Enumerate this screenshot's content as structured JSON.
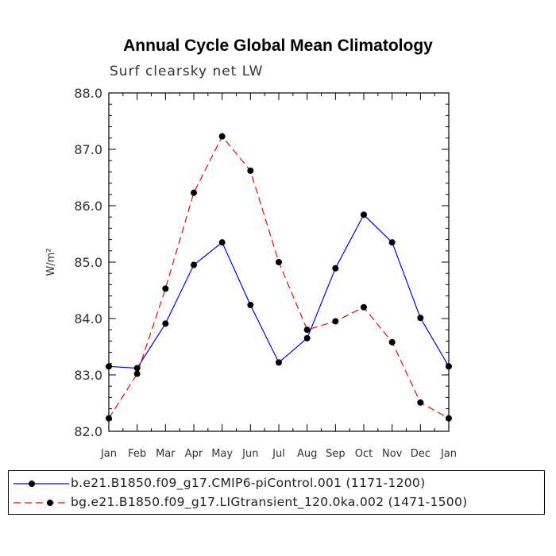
{
  "chart_data": {
    "type": "line",
    "title": "Annual Cycle Global Mean Climatology",
    "subtitle": "Surf clearsky net LW",
    "ylabel": "W/m²",
    "xlabel": "",
    "categories": [
      "Jan",
      "Feb",
      "Mar",
      "Apr",
      "May",
      "Jun",
      "Jul",
      "Aug",
      "Sep",
      "Oct",
      "Nov",
      "Dec",
      "Jan"
    ],
    "ylim": [
      82.0,
      88.0
    ],
    "yticks": [
      "82.0",
      "83.0",
      "84.0",
      "85.0",
      "86.0",
      "87.0",
      "88.0"
    ],
    "grid": false,
    "series": [
      {
        "name": "b.e21.B1850.f09_g17.CMIP6-piControl.001 (1171-1200)",
        "color": "#0000ff",
        "dash": "solid",
        "values": [
          83.15,
          83.12,
          83.91,
          84.95,
          85.35,
          84.24,
          83.22,
          83.65,
          84.89,
          85.84,
          85.35,
          84.01,
          83.15
        ]
      },
      {
        "name": "bg.e21.B1850.f09_g17.LIGtransient_120.0ka.002 (1471-1500)",
        "color": "#ff0000",
        "dash": "dashed",
        "values": [
          82.23,
          83.02,
          84.53,
          86.23,
          87.23,
          86.62,
          85.0,
          83.8,
          83.95,
          84.2,
          83.58,
          82.51,
          82.23
        ]
      }
    ],
    "legend_position": "bottom"
  }
}
